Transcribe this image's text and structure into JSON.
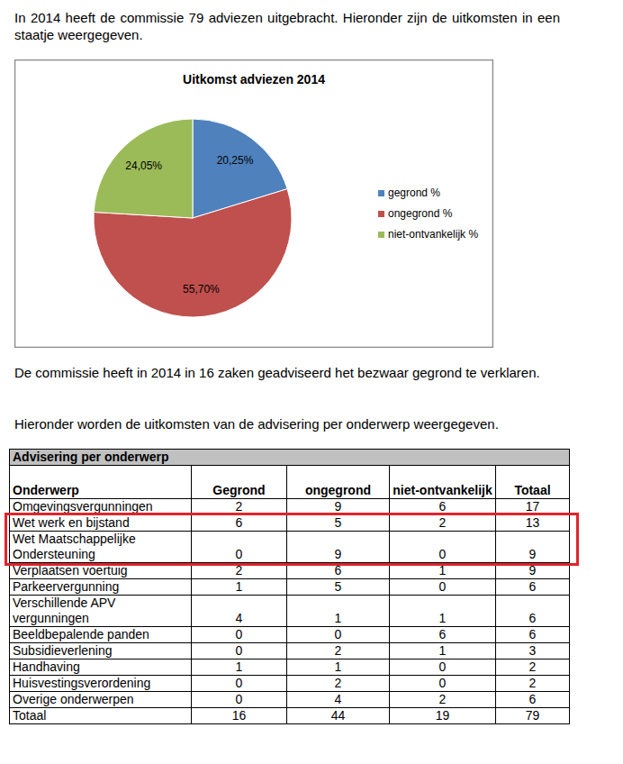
{
  "intro": "In 2014 heeft de commissie 79 adviezen uitgebracht. Hieronder zijn de uitkomsten in een staatje weergegeven.",
  "chart_data": {
    "type": "pie",
    "title": "Uitkomst adviezen 2014",
    "categories": [
      "gegrond %",
      "ongegrond %",
      "niet-ontvankelijk %"
    ],
    "values": [
      20.25,
      55.7,
      24.05
    ],
    "value_labels": [
      "20,25%",
      "55,70%",
      "24,05%"
    ],
    "colors": [
      "#4f81bd",
      "#c0504d",
      "#9bbb59"
    ],
    "data_labels": true,
    "legend": "right"
  },
  "paragraphs": [
    "De commissie heeft in 2014 in 16 zaken geadviseerd het bezwaar gegrond te verklaren.",
    "Hieronder worden de uitkomsten van de advisering per onderwerp weergegeven."
  ],
  "table": {
    "title": "Advisering per onderwerp",
    "header": [
      "Onderwerp",
      "Gegrond",
      "ongegrond",
      "niet-ontvankelijk",
      "Totaal"
    ],
    "rows": [
      [
        "Omgevingsvergunningen",
        2,
        9,
        6,
        17
      ],
      [
        "Wet werk en bijstand",
        6,
        5,
        2,
        13
      ],
      [
        "Wet Maatschappelijke Ondersteuning",
        0,
        9,
        0,
        9
      ],
      [
        "Verplaatsen voertuig",
        2,
        6,
        1,
        9
      ],
      [
        "Parkeervergunning",
        1,
        5,
        0,
        6
      ],
      [
        "Verschillende APV vergunningen",
        4,
        1,
        1,
        6
      ],
      [
        "Beeldbepalende panden",
        0,
        0,
        6,
        6
      ],
      [
        "Subsidieverlening",
        0,
        2,
        1,
        3
      ],
      [
        "Handhaving",
        1,
        1,
        0,
        2
      ],
      [
        "Huisvestingsverordening",
        0,
        2,
        0,
        2
      ],
      [
        "Overige onderwerpen",
        0,
        4,
        2,
        6
      ],
      [
        "Totaal",
        16,
        44,
        19,
        79
      ]
    ]
  }
}
